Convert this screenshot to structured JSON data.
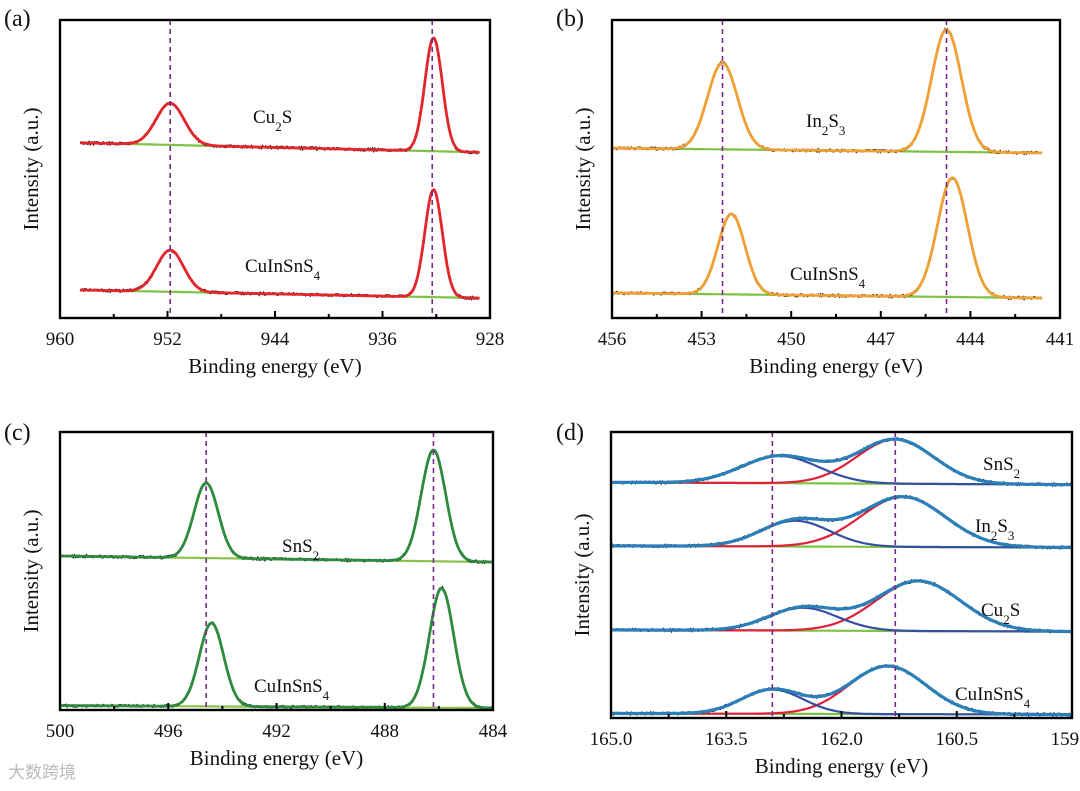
{
  "watermark": "大数跨境",
  "chart_data": [
    {
      "type": "line",
      "panel_label": "(a)",
      "xlabel": "Binding energy (eV)",
      "ylabel": "Intensity (a.u.)",
      "xlim": [
        960,
        928
      ],
      "ylim": [
        0,
        100
      ],
      "ticks": [
        "960",
        "952",
        "944",
        "936",
        "928"
      ],
      "tick_values": [
        960,
        952,
        944,
        936,
        928
      ],
      "minor_step": 4,
      "dashed_lines": [
        951.8,
        932.3
      ],
      "colors": {
        "fit": "#e3262b",
        "background": "#7dc242",
        "data": "#111111"
      },
      "data_range": [
        958.5,
        928.8
      ],
      "series": [
        {
          "name": "Cu2S",
          "baseline": [
            58.8,
            55.6
          ],
          "peaks": [
            {
              "center": 951.8,
              "height": 14,
              "sigma": 1.05
            },
            {
              "center": 932.2,
              "height": 38,
              "sigma": 0.65
            }
          ]
        },
        {
          "name": "CuInSnS4",
          "baseline": [
            9.4,
            6.7
          ],
          "peaks": [
            {
              "center": 951.8,
              "height": 14,
              "sigma": 1.0
            },
            {
              "center": 932.2,
              "height": 36,
              "sigma": 0.65
            }
          ]
        }
      ]
    },
    {
      "type": "line",
      "panel_label": "(b)",
      "xlabel": "Binding energy (eV)",
      "ylabel": "Intensity (a.u.)",
      "xlim": [
        456,
        441
      ],
      "ylim": [
        0,
        100
      ],
      "ticks": [
        "456",
        "453",
        "450",
        "447",
        "444",
        "441"
      ],
      "tick_values": [
        456,
        453,
        450,
        447,
        444,
        441
      ],
      "minor_step": 1.5,
      "dashed_lines": [
        452.3,
        444.8
      ],
      "colors": {
        "fit": "#f0a033",
        "background": "#7dc242",
        "data": "#111111"
      },
      "data_range": [
        456,
        441.6
      ],
      "series": [
        {
          "name": "In2S3",
          "baseline": [
            57,
            55.4
          ],
          "peaks": [
            {
              "center": 452.3,
              "height": 29,
              "sigma": 0.5
            },
            {
              "center": 444.8,
              "height": 41,
              "sigma": 0.5
            }
          ]
        },
        {
          "name": "CuInSnS4",
          "baseline": [
            8.4,
            6.7
          ],
          "peaks": [
            {
              "center": 452.0,
              "height": 27,
              "sigma": 0.45
            },
            {
              "center": 444.6,
              "height": 40,
              "sigma": 0.5
            }
          ]
        }
      ]
    },
    {
      "type": "line",
      "panel_label": "(c)",
      "xlabel": "Binding energy (eV)",
      "ylabel": "Intensity (a.u.)",
      "xlim": [
        500,
        484
      ],
      "ylim": [
        0,
        100
      ],
      "ticks": [
        "500",
        "496",
        "492",
        "488",
        "484"
      ],
      "tick_values": [
        500,
        496,
        492,
        488,
        484
      ],
      "minor_step": 2,
      "dashed_lines": [
        494.6,
        486.2
      ],
      "colors": {
        "fit": "#2e8b3e",
        "background": "#8bc34a",
        "data": "#111111"
      },
      "data_range": [
        500,
        484
      ],
      "series": [
        {
          "name": "SnS2",
          "baseline": [
            55.4,
            53.2
          ],
          "peaks": [
            {
              "center": 494.6,
              "height": 27,
              "sigma": 0.45
            },
            {
              "center": 486.2,
              "height": 40,
              "sigma": 0.45
            }
          ]
        },
        {
          "name": "CuInSnS4",
          "baseline": [
            1.6,
            0.7
          ],
          "peaks": [
            {
              "center": 494.4,
              "height": 30,
              "sigma": 0.45
            },
            {
              "center": 485.9,
              "height": 43,
              "sigma": 0.45
            }
          ]
        }
      ]
    },
    {
      "type": "line",
      "panel_label": "(d)",
      "xlabel": "Binding energy (eV)",
      "ylabel": "Intensity (a.u.)",
      "xlim": [
        165.0,
        159.0
      ],
      "ylim": [
        0,
        100
      ],
      "ticks": [
        "165.0",
        "163.5",
        "162.0",
        "160.5",
        "159.0"
      ],
      "tick_values": [
        165.0,
        163.5,
        162.0,
        160.5,
        159.0
      ],
      "minor_step": 0.75,
      "dashed_lines": [
        162.9,
        161.3
      ],
      "colors": {
        "fit": "#2a7fb8",
        "component_1": "#e0203a",
        "component_2": "#3450a0",
        "background": "#7dc242",
        "data": "#111111"
      },
      "data_range": [
        165.0,
        159.0
      ],
      "series": [
        {
          "name": "SnS2",
          "baseline": [
            82.4,
            81.6
          ],
          "peaks": [
            {
              "center": 161.3,
              "height": 15.5,
              "sigma": 0.5
            },
            {
              "center": 162.8,
              "height": 9.5,
              "sigma": 0.5
            }
          ]
        },
        {
          "name": "In2S3",
          "baseline": [
            60.2,
            59.6
          ],
          "peaks": [
            {
              "center": 161.2,
              "height": 17.5,
              "sigma": 0.55
            },
            {
              "center": 162.6,
              "height": 9,
              "sigma": 0.45
            }
          ]
        },
        {
          "name": "Cu2S",
          "baseline": [
            30.8,
            30.2
          ],
          "peaks": [
            {
              "center": 161.0,
              "height": 17.5,
              "sigma": 0.55
            },
            {
              "center": 162.5,
              "height": 8,
              "sigma": 0.45
            }
          ]
        },
        {
          "name": "CuInSnS4",
          "baseline": [
            1.6,
            1.2
          ],
          "peaks": [
            {
              "center": 161.4,
              "height": 16.8,
              "sigma": 0.5
            },
            {
              "center": 162.9,
              "height": 8.5,
              "sigma": 0.4
            }
          ]
        }
      ]
    }
  ]
}
